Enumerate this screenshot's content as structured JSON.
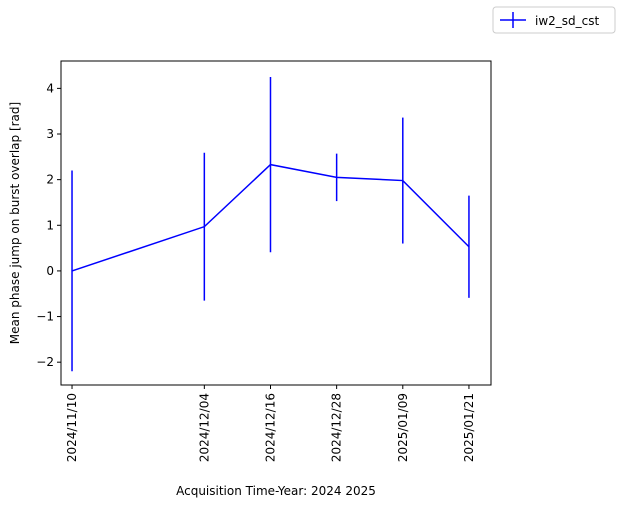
{
  "chart_data": {
    "type": "line",
    "title": "",
    "xlabel": "Acquisition Time-Year: 2024 2025",
    "ylabel": "Mean phase jump on burst overlap [rad]",
    "x_ticks": [
      "2024/11/10",
      "2024/12/04",
      "2024/12/16",
      "2024/12/28",
      "2025/01/09",
      "2025/01/21"
    ],
    "y_ticks": [
      "−2",
      "−1",
      "0",
      "1",
      "2",
      "3",
      "4"
    ],
    "ylim": [
      -2.5,
      4.6
    ],
    "xlim": [
      "2024-11-08",
      "2025-01-25"
    ],
    "grid": false,
    "legend_position": "top-right-outside",
    "series": [
      {
        "name": "iw2_sd_cst",
        "color": "#0000ff",
        "x": [
          "2024-11-10",
          "2024-12-04",
          "2024-12-16",
          "2024-12-28",
          "2025-01-09",
          "2025-01-21"
        ],
        "y": [
          0.0,
          0.97,
          2.33,
          2.05,
          1.98,
          0.53
        ],
        "yerr": [
          2.2,
          1.62,
          1.92,
          0.52,
          1.38,
          1.12
        ]
      }
    ]
  }
}
